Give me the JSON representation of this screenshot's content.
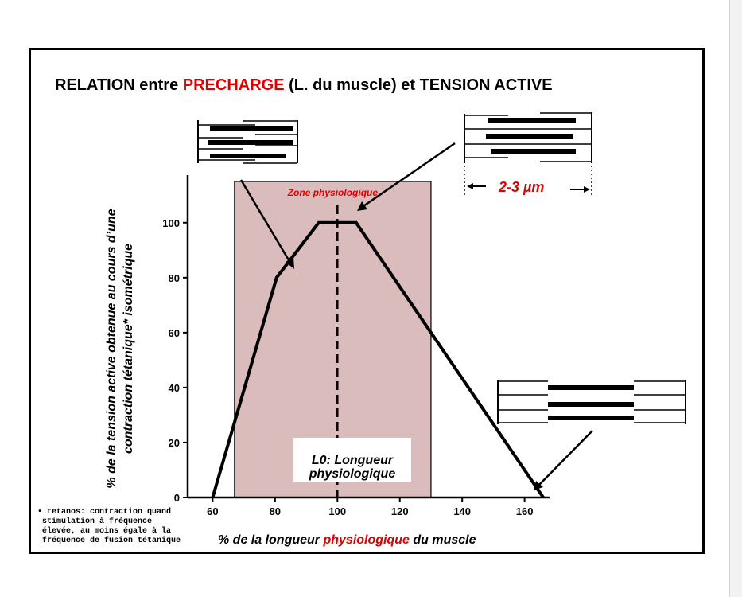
{
  "title": {
    "part1": "RELATION entre ",
    "part2": "PRECHARGE",
    "part3": " (L. du muscle)  et TENSION ACTIVE"
  },
  "ylabel": {
    "line1": "% de la tension active  obtenue au cours d’une",
    "line2": "contraction tétanique* isométrique"
  },
  "xlabel": {
    "part1": "% de la longueur ",
    "part2": "physiologique",
    "part3": " du muscle"
  },
  "zone_label": "Zone physiologique",
  "l0_label": {
    "line1": "L0: Longueur",
    "line2": "physiologique"
  },
  "measure_label": "2-3  µm",
  "footnote": [
    "• tetanos: contraction quand",
    "stimulation à fréquence",
    "élevée, au moins égale à la",
    "fréquence de fusion tétanique"
  ],
  "colors": {
    "accent_red": "#e00000",
    "zone_fill": "#dbbcbc",
    "line": "#000000"
  },
  "chart_data": {
    "type": "line",
    "x_ticks": [
      60,
      80,
      100,
      120,
      140,
      160
    ],
    "y_ticks": [
      0,
      20,
      40,
      60,
      80,
      100
    ],
    "xlim": [
      52,
      168
    ],
    "ylim": [
      0,
      115
    ],
    "series": [
      {
        "x": [
          60,
          80.5,
          94,
          106,
          166
        ],
        "y": [
          0,
          80,
          100,
          100,
          0
        ]
      }
    ],
    "reference_line_x": 100,
    "zone_x_range": [
      67,
      130
    ],
    "grid": false
  }
}
